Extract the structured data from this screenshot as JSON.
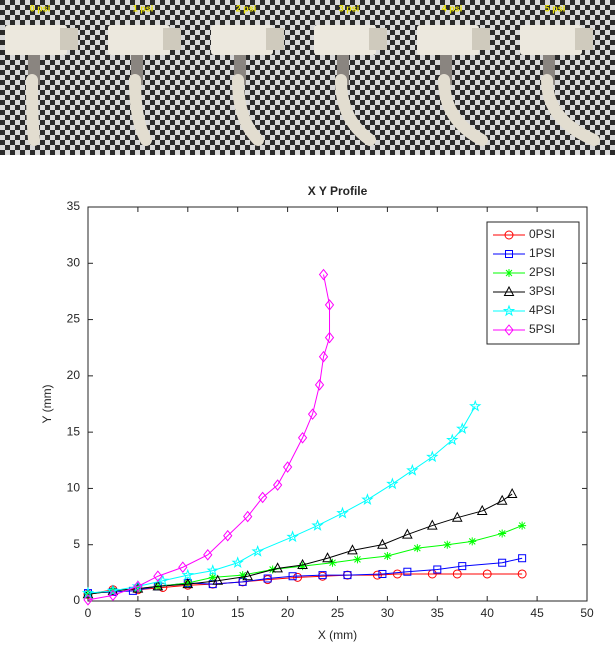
{
  "photo_labels": [
    "0 psi",
    "1 psi",
    "2 psi",
    "3 psi",
    "4 psi",
    "5 psi"
  ],
  "chart_data": {
    "type": "line",
    "title": "X Y Profile",
    "xlabel": "X (mm)",
    "ylabel": "Y (mm)",
    "xlim": [
      0,
      50
    ],
    "xticks": [
      0,
      5,
      10,
      15,
      20,
      25,
      30,
      35,
      40,
      45,
      50
    ],
    "ylim": [
      0,
      35
    ],
    "yticks": [
      0,
      5,
      10,
      15,
      20,
      25,
      30,
      35
    ],
    "grid": false,
    "legend": "top-right",
    "series": [
      {
        "name": "0PSI",
        "color": "#ff0000",
        "marker": "circle",
        "x": [
          0,
          2.5,
          5,
          7.5,
          10,
          12.5,
          15.5,
          18,
          21,
          23.5,
          26,
          29,
          31,
          34.5,
          37,
          40,
          43.5
        ],
        "values": [
          0.6,
          1.0,
          1.0,
          1.2,
          1.4,
          1.5,
          1.7,
          1.9,
          2.1,
          2.2,
          2.3,
          2.3,
          2.4,
          2.4,
          2.4,
          2.4,
          2.4
        ]
      },
      {
        "name": "1PSI",
        "color": "#0000ff",
        "marker": "square",
        "x": [
          0,
          2.5,
          4.5,
          7,
          10,
          12.5,
          15.5,
          18,
          20.5,
          23.5,
          26,
          29.5,
          32,
          35,
          37.5,
          41.5,
          43.5
        ],
        "values": [
          0.7,
          0.8,
          0.9,
          1.3,
          1.6,
          1.5,
          1.7,
          2.0,
          2.2,
          2.3,
          2.3,
          2.4,
          2.6,
          2.8,
          3.1,
          3.4,
          3.8
        ]
      },
      {
        "name": "2PSI",
        "color": "#00ff00",
        "marker": "star",
        "x": [
          0,
          2.5,
          5,
          7,
          10,
          12.5,
          15.5,
          18.5,
          21.5,
          24.5,
          27,
          30,
          33,
          36,
          38.5,
          41.5,
          43.5
        ],
        "values": [
          0.6,
          0.9,
          1.1,
          1.3,
          1.6,
          2.1,
          2.3,
          2.8,
          3.1,
          3.4,
          3.7,
          4.0,
          4.7,
          5.0,
          5.3,
          6.0,
          6.7
        ]
      },
      {
        "name": "3PSI",
        "color": "#000000",
        "marker": "triangle",
        "x": [
          0,
          2.5,
          5,
          7,
          10,
          13,
          16,
          19,
          21.5,
          24,
          26.5,
          29.5,
          32,
          34.5,
          37,
          39.5,
          41.5,
          42.5
        ],
        "values": [
          0.6,
          0.9,
          1.1,
          1.3,
          1.5,
          1.8,
          2.2,
          2.9,
          3.2,
          3.8,
          4.5,
          5.0,
          5.9,
          6.7,
          7.4,
          8.0,
          8.9,
          9.5
        ]
      },
      {
        "name": "4PSI",
        "color": "#00ffff",
        "marker": "pentagram",
        "x": [
          0,
          2.5,
          5,
          7.5,
          10,
          12.5,
          15,
          17,
          20.5,
          23,
          25.5,
          28,
          30.5,
          32.5,
          34.5,
          36.5,
          37.5,
          38.8
        ],
        "values": [
          0.7,
          0.9,
          1.3,
          1.8,
          2.3,
          2.7,
          3.4,
          4.4,
          5.7,
          6.7,
          7.8,
          9.0,
          10.4,
          11.6,
          12.8,
          14.3,
          15.3,
          17.3
        ]
      },
      {
        "name": "5PSI",
        "color": "#ff00ff",
        "marker": "diamond",
        "x": [
          0,
          2.5,
          5,
          7,
          9.5,
          12,
          14,
          16,
          17.5,
          19,
          20,
          21.5,
          22.5,
          23.2,
          23.6,
          24.2,
          24.2,
          23.6
        ],
        "values": [
          0.1,
          0.5,
          1.3,
          2.2,
          3.0,
          4.1,
          5.8,
          7.5,
          9.2,
          10.3,
          11.9,
          14.5,
          16.6,
          19.2,
          21.7,
          23.4,
          26.3,
          29.0
        ]
      }
    ]
  }
}
